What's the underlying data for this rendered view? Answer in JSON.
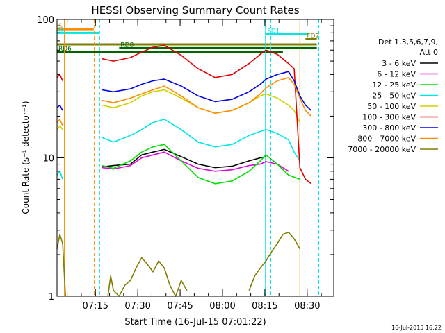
{
  "chart_data": {
    "type": "line",
    "title": "HESSI Observing Summary Count Rates",
    "xlabel": "Start Time (16-Jul-15 07:01:22)",
    "ylabel": "Count Rate (s⁻¹ detector⁻¹)",
    "ylog": true,
    "ylim": [
      1,
      100
    ],
    "xlim_minutes": [
      0,
      98
    ],
    "x_ticks": [
      {
        "label": "07:15",
        "minute": 13.6
      },
      {
        "label": "07:30",
        "minute": 28.6
      },
      {
        "label": "07:45",
        "minute": 43.6
      },
      {
        "label": "08:00",
        "minute": 58.6
      },
      {
        "label": "08:15",
        "minute": 73.6
      },
      {
        "label": "08:30",
        "minute": 88.6
      }
    ],
    "y_ticks": [
      {
        "label": "1",
        "value": 1
      },
      {
        "label": "10",
        "value": 10
      },
      {
        "label": "100",
        "value": 100
      }
    ],
    "footer_date": "16-Jul-2015 16:22",
    "legend_header": [
      "Det 1,3,5,6,7,9,",
      "Att 0"
    ],
    "series": [
      {
        "name": "3 - 6 keV",
        "color": "#000000",
        "t": [
          16,
          20,
          26,
          30,
          34,
          38,
          44,
          50,
          56,
          62,
          68,
          72,
          74
        ],
        "values": [
          8.6,
          8.8,
          9.0,
          10.5,
          11.0,
          11.5,
          10.2,
          9.0,
          8.5,
          8.7,
          9.5,
          10.0,
          10.2
        ]
      },
      {
        "name": "6 - 12 keV",
        "color": "#e000e0",
        "t": [
          16,
          20,
          26,
          30,
          34,
          38,
          44,
          50,
          56,
          62,
          68,
          72,
          74,
          78,
          82
        ],
        "values": [
          8.5,
          8.3,
          8.8,
          10.0,
          10.5,
          11.0,
          9.5,
          8.4,
          8.0,
          8.2,
          8.8,
          9.0,
          9.4,
          9.0,
          8.0
        ]
      },
      {
        "name": "12 - 25 keV",
        "color": "#00e000",
        "t": [
          16,
          20,
          26,
          30,
          34,
          38,
          44,
          50,
          56,
          62,
          68,
          72,
          74,
          78,
          82,
          86
        ],
        "values": [
          8.8,
          8.4,
          9.5,
          11.0,
          12.0,
          12.5,
          9.5,
          7.2,
          6.5,
          6.8,
          8.0,
          9.5,
          10.5,
          9.0,
          7.5,
          7.0
        ]
      },
      {
        "name": "25 - 50 keV",
        "color": "#00e6e6",
        "t": [
          0,
          1,
          2,
          16,
          20,
          26,
          30,
          34,
          38,
          44,
          50,
          56,
          62,
          68,
          72,
          74,
          78,
          82,
          84,
          86
        ],
        "values": [
          7.5,
          8.0,
          7.0,
          14.0,
          13.0,
          14.5,
          16.0,
          18.0,
          19.0,
          16.0,
          13.0,
          12.0,
          12.5,
          14.5,
          15.5,
          16.0,
          15.0,
          13.5,
          11.0,
          9.5
        ]
      },
      {
        "name": "50 - 100 keV",
        "color": "#d2d200",
        "t": [
          0,
          1,
          2,
          16,
          20,
          26,
          30,
          34,
          38,
          44,
          50,
          56,
          62,
          68,
          72,
          74,
          78,
          82,
          84,
          86
        ],
        "values": [
          16.0,
          17.0,
          16.0,
          24.0,
          23.0,
          25.0,
          28.0,
          30.0,
          31.0,
          27.0,
          23.0,
          21.0,
          22.0,
          25.0,
          28.0,
          29.0,
          27.0,
          24.0,
          22.0,
          18.0
        ]
      },
      {
        "name": "100 - 300 keV",
        "color": "#e10000",
        "t": [
          0,
          1,
          2,
          16,
          20,
          26,
          30,
          34,
          38,
          44,
          50,
          56,
          62,
          68,
          72,
          74,
          78,
          82,
          84,
          86,
          88,
          90
        ],
        "values": [
          38.0,
          40.0,
          36.0,
          52.0,
          50.0,
          53.0,
          58.0,
          63.0,
          65.0,
          55.0,
          44.0,
          38.0,
          40.0,
          48.0,
          56.0,
          60.0,
          56.0,
          48.0,
          44.0,
          8.5,
          7.0,
          6.5
        ]
      },
      {
        "name": "300 - 800 keV",
        "color": "#0000e6",
        "t": [
          0,
          1,
          2,
          16,
          20,
          26,
          30,
          34,
          38,
          44,
          50,
          56,
          62,
          68,
          72,
          74,
          78,
          82,
          84,
          86,
          88,
          90
        ],
        "values": [
          23.0,
          24.0,
          22.0,
          31.0,
          30.0,
          31.5,
          34.0,
          36.0,
          37.0,
          33.0,
          28.0,
          25.5,
          26.5,
          30.0,
          34.0,
          37.0,
          40.0,
          42.0,
          36.0,
          28.0,
          24.0,
          22.0
        ]
      },
      {
        "name": "800 - 7000 keV",
        "color": "#ff8c00",
        "t": [
          0,
          1,
          2,
          16,
          20,
          26,
          30,
          34,
          38,
          44,
          50,
          56,
          62,
          68,
          72,
          74,
          78,
          82,
          84,
          86,
          88,
          90
        ],
        "values": [
          18.0,
          19.0,
          17.0,
          26.0,
          25.0,
          27.0,
          29.0,
          31.0,
          33.0,
          28.0,
          23.0,
          21.0,
          22.0,
          25.0,
          29.0,
          32.0,
          36.0,
          38.0,
          34.0,
          27.0,
          22.0,
          20.0
        ]
      },
      {
        "name": "7000 - 20000 keV",
        "color": "#7e7e00",
        "t": [
          0,
          1,
          2,
          3,
          18,
          19,
          20,
          22,
          24,
          26,
          28,
          30,
          32,
          34,
          36,
          38,
          40,
          42,
          44,
          46,
          68,
          70,
          72,
          74,
          76,
          78,
          80,
          82,
          84,
          86
        ],
        "values": [
          2.2,
          2.8,
          2.4,
          1.0,
          1.0,
          1.4,
          1.1,
          1.0,
          1.2,
          1.3,
          1.6,
          1.9,
          1.7,
          1.5,
          1.8,
          1.6,
          1.2,
          1.0,
          1.3,
          1.1,
          1.1,
          1.4,
          1.6,
          1.8,
          2.1,
          2.4,
          2.8,
          2.9,
          2.6,
          2.2
        ]
      }
    ],
    "bars": [
      {
        "label": "S",
        "color": "#ff8c00",
        "t0": 0,
        "t1": 13,
        "y": 85
      },
      {
        "label": "N",
        "color": "#00e6e6",
        "t0": 0,
        "t1": 15,
        "y": 80
      },
      {
        "label": "FD1",
        "color": "#00e6e6",
        "t0": 74,
        "t1": 89,
        "y": 78
      },
      {
        "label": "FD2",
        "color": "#7e7e00",
        "t0": 88,
        "t1": 92,
        "y": 72
      },
      {
        "label": "",
        "color": "#7e7e00",
        "t0": 0,
        "t1": 92,
        "y": 66
      },
      {
        "label": "RD8",
        "color": "#006400",
        "t0": 22,
        "t1": 92,
        "y": 62
      },
      {
        "label": "RD6",
        "color": "#006400",
        "t0": 0,
        "t1": 80,
        "y": 58
      }
    ],
    "vlines": [
      {
        "t": 2.6,
        "color": "#ff8c00",
        "dashed": false
      },
      {
        "t": 13.2,
        "color": "#ff8c00",
        "dashed": true
      },
      {
        "t": 15.1,
        "color": "#00e6e6",
        "dashed": true
      },
      {
        "t": 73.8,
        "color": "#00e6e6",
        "dashed": false
      },
      {
        "t": 75.7,
        "color": "#00e6e6",
        "dashed": true
      },
      {
        "t": 86.0,
        "color": "#ff8c00",
        "dashed": false
      },
      {
        "t": 87.8,
        "color": "#00e6e6",
        "dashed": true
      },
      {
        "t": 92.7,
        "color": "#00e6e6",
        "dashed": true
      }
    ]
  }
}
